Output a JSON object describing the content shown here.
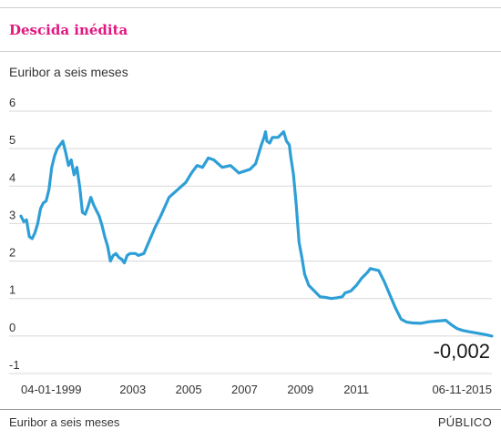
{
  "header": {
    "title": "Descida inédita",
    "subtitle": "Euribor a seis meses"
  },
  "footer": {
    "source": "Euribor a seis meses",
    "publisher": "PÚBLICO"
  },
  "colors": {
    "title": "#e0187f",
    "line": "#2e9fd6",
    "grid": "#d8d8d8"
  },
  "chart_data": {
    "type": "line",
    "title": "Descida inédita",
    "subtitle": "Euribor a seis meses",
    "xlabel": "",
    "ylabel": "",
    "xlim": [
      1999.0,
      2015.85
    ],
    "ylim": [
      -1,
      6
    ],
    "yticks": [
      6,
      5,
      4,
      3,
      2,
      1,
      0,
      -1
    ],
    "xticks": [
      {
        "value": 1999.0,
        "label": "04-01-1999"
      },
      {
        "value": 2003.0,
        "label": "2003"
      },
      {
        "value": 2005.0,
        "label": "2005"
      },
      {
        "value": 2007.0,
        "label": "2007"
      },
      {
        "value": 2009.0,
        "label": "2009"
      },
      {
        "value": 2011.0,
        "label": "2011"
      },
      {
        "value": 2015.85,
        "label": "06-11-2015"
      }
    ],
    "grid": true,
    "series": [
      {
        "x": [
          1999.0,
          1999.1,
          1999.2,
          1999.3,
          1999.4,
          1999.5,
          1999.6,
          1999.7,
          1999.8,
          1999.9,
          2000.0,
          2000.1,
          2000.2,
          2000.3,
          2000.4,
          2000.5,
          2000.6,
          2000.7,
          2000.8,
          2000.9,
          2001.0,
          2001.1,
          2001.2,
          2001.3,
          2001.4,
          2001.5,
          2001.6,
          2001.7,
          2001.8,
          2001.9,
          2002.0,
          2002.1,
          2002.2,
          2002.3,
          2002.4,
          2002.5,
          2002.6,
          2002.7,
          2002.8,
          2002.9,
          2003.0,
          2003.1,
          2003.2,
          2003.4,
          2003.6,
          2003.8,
          2004.0,
          2004.3,
          2004.6,
          2004.9,
          2005.1,
          2005.3,
          2005.5,
          2005.7,
          2005.9,
          2006.2,
          2006.5,
          2006.8,
          2007.0,
          2007.2,
          2007.4,
          2007.5,
          2007.6,
          2007.7,
          2007.75,
          2007.8,
          2007.9,
          2008.0,
          2008.2,
          2008.4,
          2008.5,
          2008.6,
          2008.65,
          2008.75,
          2008.85,
          2008.95,
          2009.05,
          2009.15,
          2009.3,
          2009.5,
          2009.7,
          2009.9,
          2010.1,
          2010.3,
          2010.5,
          2010.6,
          2010.8,
          2011.0,
          2011.2,
          2011.4,
          2011.5,
          2011.6,
          2011.8,
          2012.0,
          2012.2,
          2012.4,
          2012.6,
          2012.8,
          2013.0,
          2013.3,
          2013.6,
          2013.9,
          2014.2,
          2014.4,
          2014.6,
          2014.8,
          2015.0,
          2015.3,
          2015.6,
          2015.85
        ],
        "y": [
          3.2,
          3.05,
          3.1,
          2.65,
          2.6,
          2.75,
          3.0,
          3.4,
          3.55,
          3.6,
          3.9,
          4.5,
          4.8,
          5.0,
          5.1,
          5.2,
          4.9,
          4.55,
          4.7,
          4.3,
          4.5,
          4.0,
          3.3,
          3.25,
          3.45,
          3.7,
          3.5,
          3.35,
          3.2,
          2.95,
          2.65,
          2.4,
          2.0,
          2.15,
          2.2,
          2.1,
          2.05,
          1.95,
          2.15,
          2.2,
          2.2,
          2.2,
          2.15,
          2.2,
          2.55,
          2.9,
          3.2,
          3.7,
          3.9,
          4.1,
          4.35,
          4.55,
          4.5,
          4.75,
          4.7,
          4.5,
          4.55,
          4.35,
          4.4,
          4.45,
          4.6,
          4.85,
          5.1,
          5.3,
          5.45,
          5.2,
          5.15,
          5.3,
          5.3,
          5.45,
          5.2,
          5.1,
          4.8,
          4.3,
          3.5,
          2.5,
          2.1,
          1.65,
          1.35,
          1.2,
          1.05,
          1.03,
          1.0,
          1.02,
          1.05,
          1.15,
          1.2,
          1.35,
          1.55,
          1.7,
          1.8,
          1.78,
          1.75,
          1.45,
          1.1,
          0.75,
          0.45,
          0.37,
          0.35,
          0.34,
          0.38,
          0.4,
          0.42,
          0.3,
          0.2,
          0.15,
          0.12,
          0.08,
          0.04,
          -0.002
        ]
      }
    ],
    "annotations": [
      {
        "text": "-0,002"
      }
    ]
  }
}
